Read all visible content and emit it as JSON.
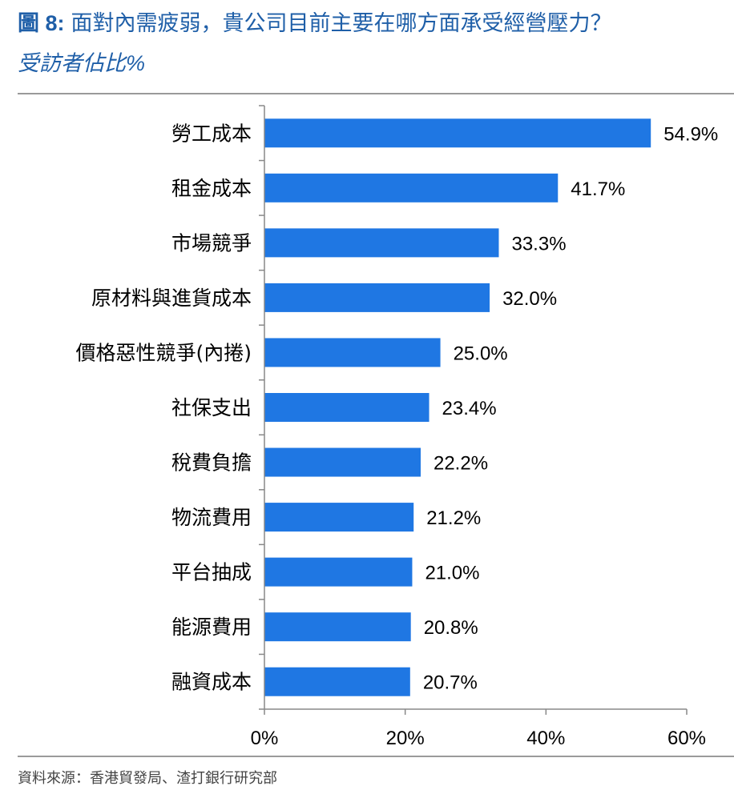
{
  "header": {
    "figure_number": "圖 8:",
    "title": "面對內需疲弱，貴公司目前主要在哪方面承受經營壓力？",
    "subtitle": "受訪者佔比%"
  },
  "footer": {
    "source": "資料來源：香港貿發局、渣打銀行研究部"
  },
  "colors": {
    "title": "#1f5fa8",
    "bar": "#1f77e3",
    "axis": "#888888"
  },
  "chart_data": {
    "type": "bar",
    "orientation": "horizontal",
    "categories": [
      "勞工成本",
      "租金成本",
      "市場競爭",
      "原材料與進貨成本",
      "價格惡性競爭(內捲)",
      "社保支出",
      "稅費負擔",
      "物流費用",
      "平台抽成",
      "能源費用",
      "融資成本"
    ],
    "values": [
      54.9,
      41.7,
      33.3,
      32.0,
      25.0,
      23.4,
      22.2,
      21.2,
      21.0,
      20.8,
      20.7
    ],
    "value_labels": [
      "54.9%",
      "41.7%",
      "33.3%",
      "32.0%",
      "25.0%",
      "23.4%",
      "22.2%",
      "21.2%",
      "21.0%",
      "20.8%",
      "20.7%"
    ],
    "xlim": [
      0,
      60
    ],
    "xticks": [
      0,
      20,
      40,
      60
    ],
    "xtick_labels": [
      "0%",
      "20%",
      "40%",
      "60%"
    ],
    "grid": false
  }
}
